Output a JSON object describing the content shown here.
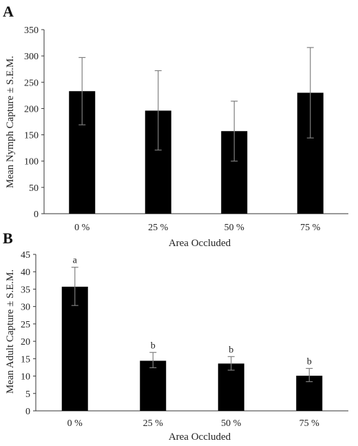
{
  "chart_data": [
    {
      "type": "bar",
      "panel_label": "A",
      "categories": [
        "0 %",
        "25 %",
        "50 %",
        "75 %"
      ],
      "values": [
        233,
        196,
        157,
        230
      ],
      "error_bars": [
        [
          169,
          297
        ],
        [
          121,
          272
        ],
        [
          100,
          214
        ],
        [
          144,
          316
        ]
      ],
      "significance_labels": [],
      "xlabel": "",
      "ylabel": "Mean Nymph Capture ± S.E.M.",
      "ylim": [
        0,
        350
      ],
      "yticks": [
        0,
        50,
        100,
        150,
        200,
        250,
        300,
        350
      ],
      "grid": false,
      "bar_color": "#000000"
    },
    {
      "type": "bar",
      "panel_label": "B",
      "categories": [
        "0 %",
        "25 %",
        "50 %",
        "75 %"
      ],
      "values": [
        35.7,
        14.4,
        13.6,
        10.1
      ],
      "error_bars": [
        [
          30.3,
          41.3
        ],
        [
          12.4,
          16.8
        ],
        [
          11.7,
          15.6
        ],
        [
          8.4,
          12.2
        ]
      ],
      "significance_labels": [
        "a",
        "b",
        "b",
        "b"
      ],
      "xlabel": "Area Occluded",
      "ylabel": "Mean Adult Capture ± S.E.M.",
      "ylim": [
        0,
        45
      ],
      "yticks": [
        0,
        5,
        10,
        15,
        20,
        25,
        30,
        35,
        40,
        45
      ],
      "grid": false,
      "bar_color": "#000000"
    }
  ],
  "xlabel_between_panels": "Area Occluded"
}
